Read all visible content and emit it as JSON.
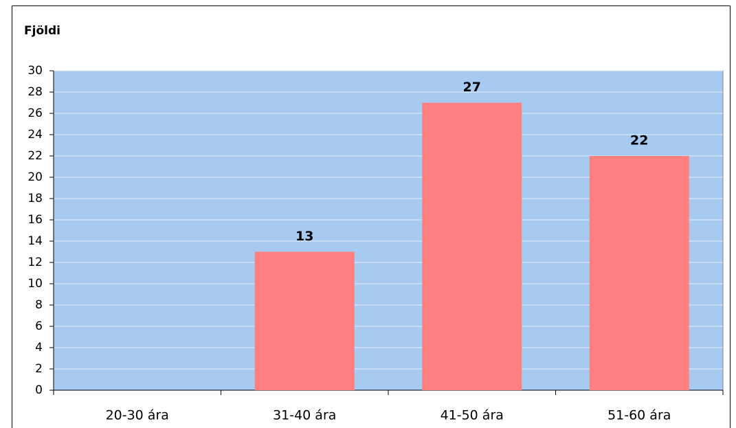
{
  "chart_data": {
    "type": "bar",
    "title": "Fjöldi",
    "categories": [
      "20-30 ára",
      "31-40 ára",
      "41-50 ára",
      "51-60 ára"
    ],
    "values": [
      null,
      13,
      27,
      22
    ],
    "color": "#ff8080",
    "ylim": [
      0,
      30
    ],
    "yticks": [
      0,
      2,
      4,
      6,
      8,
      10,
      12,
      14,
      16,
      18,
      20,
      22,
      24,
      26,
      28,
      30
    ],
    "grid": true
  }
}
